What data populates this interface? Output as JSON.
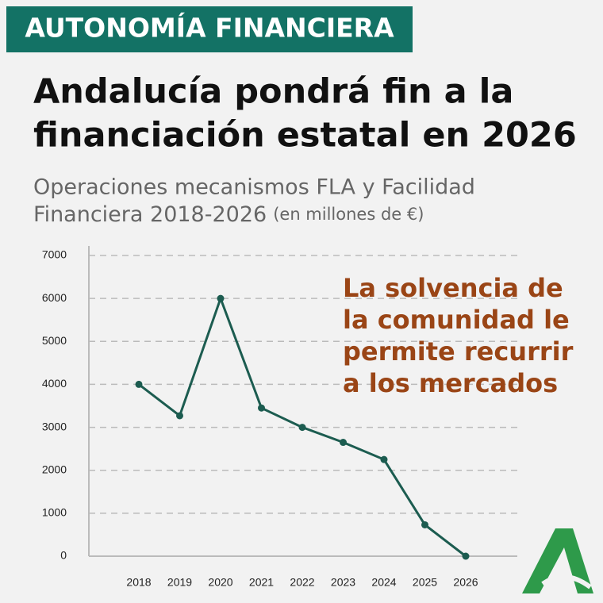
{
  "chart_data": {
    "type": "line",
    "banner": "AUTONOMÍA FINANCIERA",
    "title": [
      "Andalucía pondrá fin a la",
      "financiación estatal en 2026"
    ],
    "subtitle": [
      "Operaciones mecanismos FLA y Facilidad",
      "Financiera 2018-2026"
    ],
    "subtitle_note": "(en millones de €)",
    "annotation": [
      "La solvencia de",
      "la comunidad le",
      "permite recurrir",
      "a los mercados"
    ],
    "categories": [
      "2018",
      "2019",
      "2020",
      "2021",
      "2022",
      "2023",
      "2024",
      "2025",
      "2026"
    ],
    "values": [
      4000,
      3270,
      6000,
      3450,
      3000,
      2650,
      2250,
      730,
      0
    ],
    "color": "#1c5c50",
    "ylim": [
      0,
      7000
    ],
    "yticks": [
      0,
      1000,
      2000,
      3000,
      4000,
      5000,
      6000,
      7000
    ],
    "grid": true
  }
}
